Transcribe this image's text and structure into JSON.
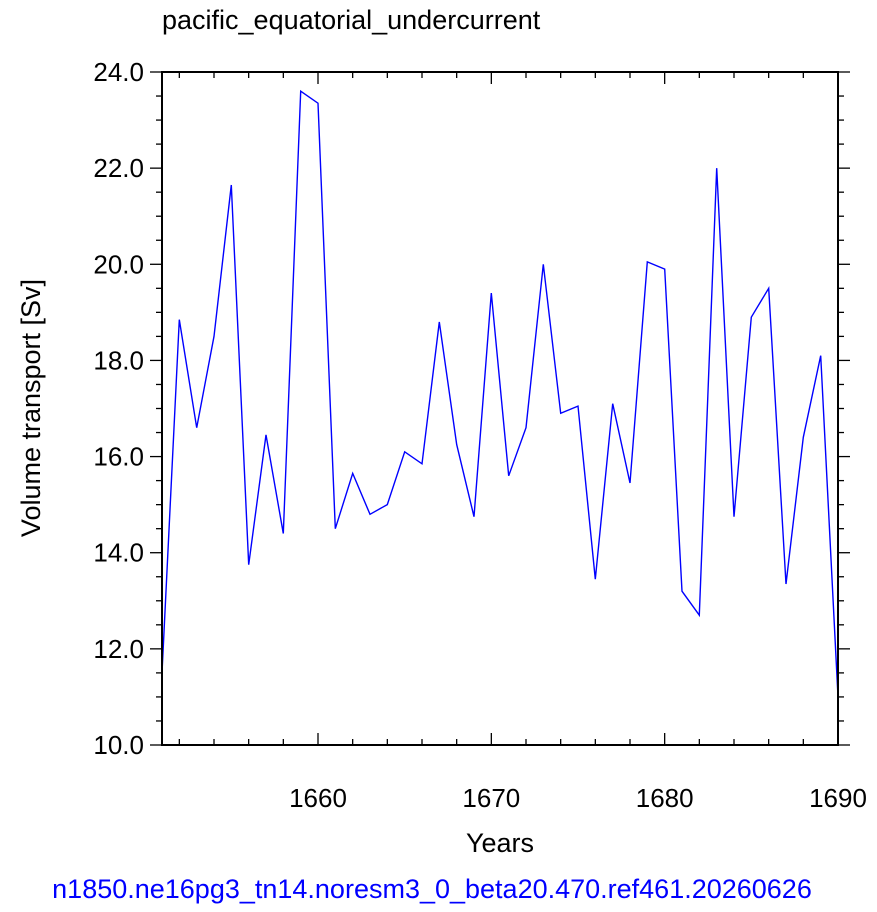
{
  "chart_data": {
    "type": "line",
    "title": "pacific_equatorial_undercurrent",
    "xlabel": "Years",
    "ylabel": "Volume transport [Sv]",
    "xlim": [
      1651,
      1690
    ],
    "ylim": [
      10,
      24
    ],
    "x_ticks": [
      1660,
      1670,
      1680,
      1690
    ],
    "x_tick_labels": [
      "1660",
      "1670",
      "1680",
      "1690"
    ],
    "y_ticks": [
      10,
      12,
      14,
      16,
      18,
      20,
      22,
      24
    ],
    "y_tick_labels": [
      "10.0",
      "12.0",
      "14.0",
      "16.0",
      "18.0",
      "20.0",
      "22.0",
      "24.0"
    ],
    "series": [
      {
        "color": "#0000ff",
        "x": [
          1651,
          1652,
          1653,
          1654,
          1655,
          1656,
          1657,
          1658,
          1659,
          1660,
          1661,
          1662,
          1663,
          1664,
          1665,
          1666,
          1667,
          1668,
          1669,
          1670,
          1671,
          1672,
          1673,
          1674,
          1675,
          1676,
          1677,
          1678,
          1679,
          1680,
          1681,
          1682,
          1683,
          1684,
          1685,
          1686,
          1687,
          1688,
          1689,
          1690
        ],
        "values": [
          11.5,
          18.85,
          16.6,
          18.5,
          21.65,
          13.75,
          16.45,
          14.4,
          23.6,
          23.35,
          14.5,
          15.65,
          14.8,
          15.0,
          16.1,
          15.85,
          18.8,
          16.25,
          14.75,
          19.4,
          15.6,
          16.6,
          20.0,
          16.9,
          17.05,
          13.45,
          17.1,
          15.45,
          20.05,
          19.9,
          13.2,
          12.7,
          22.0,
          14.75,
          18.9,
          19.5,
          13.35,
          16.4,
          18.1,
          11.0
        ]
      }
    ],
    "footer": "n1850.ne16pg3_tn14.noresm3_0_beta20.470.ref461.20260626"
  }
}
